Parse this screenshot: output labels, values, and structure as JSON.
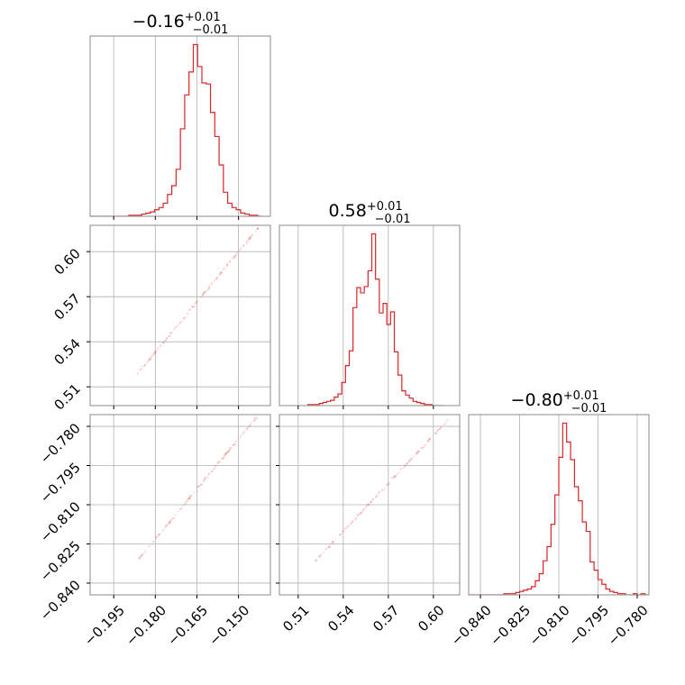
{
  "chart_data": {
    "type": "corner",
    "color": "#d62728",
    "grid": true,
    "parameters": [
      {
        "title_main": "−0.16",
        "title_sup": "+0.01",
        "title_sub": "−0.01",
        "range": [
          -0.2035,
          -0.1385
        ],
        "ticks": [
          -0.195,
          -0.18,
          -0.165,
          -0.15
        ],
        "tick_labels": [
          "−0.195",
          "−0.180",
          "−0.165",
          "−0.150"
        ],
        "hist_x": [
          -0.2035,
          -0.1415,
          40
        ],
        "hist_counts": [
          0,
          0,
          0,
          0,
          0,
          0,
          0,
          0,
          0,
          1,
          1,
          1,
          2,
          3,
          4,
          6,
          8,
          12,
          20,
          28,
          43,
          80,
          111,
          132,
          157,
          137,
          122,
          121,
          95,
          73,
          47,
          22,
          12,
          8,
          6,
          3,
          2,
          1,
          1,
          0
        ]
      },
      {
        "title_main": "0.58",
        "title_sup": "+0.01",
        "title_sub": "−0.01",
        "range": [
          0.4975,
          0.6175
        ],
        "ticks": [
          0.51,
          0.54,
          0.57,
          0.6
        ],
        "tick_labels": [
          "0.51",
          "0.54",
          "0.57",
          "0.60"
        ],
        "hist_x": [
          0.5165,
          0.6065,
          36
        ],
        "hist_counts": [
          1,
          1,
          1,
          2,
          3,
          4,
          5,
          8,
          11,
          22,
          38,
          52,
          93,
          112,
          107,
          113,
          128,
          163,
          120,
          88,
          97,
          77,
          89,
          51,
          29,
          14,
          10,
          7,
          4,
          3,
          2,
          1,
          1,
          0,
          0,
          0
        ]
      },
      {
        "title_main": "−0.80",
        "title_sup": "+0.01",
        "title_sub": "−0.01",
        "range": [
          -0.8445,
          -0.7755
        ],
        "ticks": [
          -0.84,
          -0.825,
          -0.81,
          -0.795,
          -0.78
        ],
        "tick_labels": [
          "−0.840",
          "−0.825",
          "−0.810",
          "−0.795",
          "−0.780"
        ],
        "hist_x": [
          -0.8445,
          -0.7755,
          46
        ],
        "hist_counts": [
          0,
          0,
          0,
          0,
          0,
          0,
          0,
          0,
          0,
          1,
          1,
          1,
          2,
          3,
          4,
          5,
          7,
          12,
          18,
          29,
          41,
          60,
          85,
          117,
          146,
          130,
          115,
          92,
          80,
          62,
          54,
          28,
          21,
          13,
          9,
          5,
          3,
          2,
          1,
          1,
          0,
          0,
          1,
          0,
          1,
          0
        ]
      }
    ],
    "pairs": [
      {
        "row": 1,
        "col": 0,
        "scatter_from": [
          -0.1865,
          0.5185
        ],
        "scatter_to": [
          -0.143,
          0.6155
        ],
        "contour_from": [
          -0.168,
          0.5595
        ],
        "contour_to": [
          -0.1495,
          0.5985
        ]
      },
      {
        "row": 2,
        "col": 0,
        "scatter_from": [
          -0.1865,
          -0.8315
        ],
        "scatter_to": [
          -0.1435,
          -0.7765
        ],
        "contour_from": [
          -0.169,
          -0.8105
        ],
        "contour_to": [
          -0.1495,
          -0.7875
        ]
      },
      {
        "row": 2,
        "col": 1,
        "scatter_from": [
          0.5215,
          -0.8315
        ],
        "scatter_to": [
          0.6115,
          -0.7765
        ],
        "contour_from": [
          0.5545,
          -0.8115
        ],
        "contour_to": [
          0.5995,
          -0.7885
        ]
      }
    ]
  }
}
